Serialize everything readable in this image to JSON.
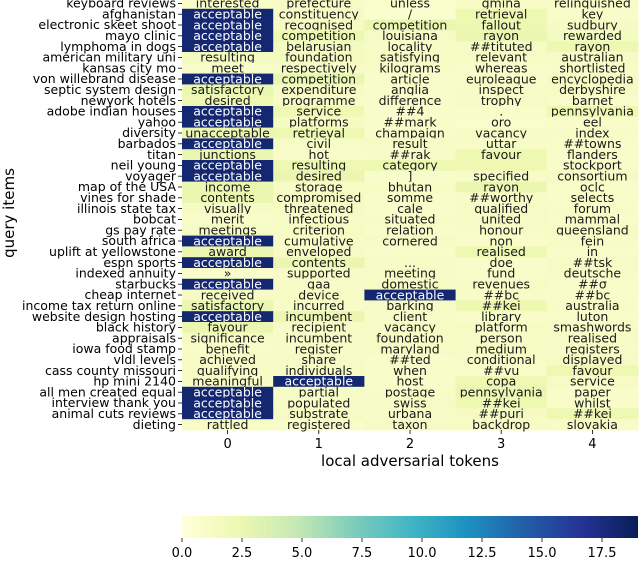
{
  "chart_data": {
    "type": "heatmap",
    "title": "",
    "xlabel": "local adversarial tokens",
    "ylabel": "query items",
    "columns": [
      "0",
      "1",
      "2",
      "3",
      "4"
    ],
    "rows": [
      {
        "query": "keyboard reviews",
        "tokens": [
          "interested",
          "prefecture",
          "unless",
          "gmina",
          "relinquished"
        ],
        "values": [
          1.0,
          1.2,
          0.8,
          1.3,
          1.1
        ]
      },
      {
        "query": "afghanistan",
        "tokens": [
          "acceptable",
          "constituency",
          "/",
          "retrieval",
          "key"
        ],
        "values": [
          18.0,
          1.2,
          0.7,
          2.4,
          1.0
        ]
      },
      {
        "query": "electronic skeet shoot",
        "tokens": [
          "acceptable",
          "recognised",
          "competition",
          "fallout",
          "sudbury"
        ],
        "values": [
          18.0,
          1.3,
          2.6,
          2.3,
          1.2
        ]
      },
      {
        "query": "mayo clinic",
        "tokens": [
          "acceptable",
          "competition",
          "louisiana",
          "rayon",
          "rewarded"
        ],
        "values": [
          18.0,
          2.4,
          1.2,
          2.5,
          1.4
        ]
      },
      {
        "query": "lymphoma in dogs",
        "tokens": [
          "acceptable",
          "belarusian",
          "locality",
          "##tituted",
          "rayon"
        ],
        "values": [
          18.0,
          1.4,
          1.1,
          1.3,
          2.4
        ]
      },
      {
        "query": "american military uni",
        "tokens": [
          "resulting",
          "foundation",
          "satisfying",
          "relevant",
          "australian"
        ],
        "values": [
          1.5,
          1.6,
          1.3,
          1.2,
          1.2
        ]
      },
      {
        "query": "kansas city mo",
        "tokens": [
          "meet",
          "respectively",
          "kilograms",
          "whereas",
          "shortlisted"
        ],
        "values": [
          1.0,
          1.2,
          1.1,
          1.0,
          1.1
        ]
      },
      {
        "query": "von willebrand disease",
        "tokens": [
          "acceptable",
          "competition",
          "article",
          "euroleague",
          "encyclopedia"
        ],
        "values": [
          18.0,
          2.6,
          0.9,
          1.0,
          1.2
        ]
      },
      {
        "query": "septic system design",
        "tokens": [
          "satisfactory",
          "expenditure",
          "anglia",
          "inspect",
          "derbyshire"
        ],
        "values": [
          2.6,
          1.2,
          1.0,
          1.1,
          1.3
        ]
      },
      {
        "query": "newyork hotels",
        "tokens": [
          "desired",
          "programme",
          "difference",
          "trophy",
          "barnet"
        ],
        "values": [
          2.3,
          1.1,
          1.0,
          1.2,
          1.0
        ]
      },
      {
        "query": "adobe indian houses",
        "tokens": [
          "acceptable",
          "service",
          "##4",
          ".",
          "pennsylvania"
        ],
        "values": [
          18.0,
          2.2,
          0.8,
          1.0,
          2.4
        ]
      },
      {
        "query": "yahoo",
        "tokens": [
          "acceptable",
          "platforms",
          "##mark",
          "oro",
          "eel"
        ],
        "values": [
          18.0,
          1.3,
          1.0,
          0.8,
          1.0
        ]
      },
      {
        "query": "diversity",
        "tokens": [
          "unacceptable",
          "retrieval",
          "champaign",
          "vacancy",
          "index"
        ],
        "values": [
          2.5,
          2.4,
          1.0,
          1.2,
          1.1
        ]
      },
      {
        "query": "barbados",
        "tokens": [
          "acceptable",
          "civil",
          "result",
          "uttar",
          "##towns"
        ],
        "values": [
          18.0,
          1.1,
          1.2,
          1.1,
          1.0
        ]
      },
      {
        "query": "titan",
        "tokens": [
          "junctions",
          "hot",
          "##rak",
          "favour",
          "flanders"
        ],
        "values": [
          2.5,
          1.0,
          1.1,
          2.4,
          1.0
        ]
      },
      {
        "query": "neil young",
        "tokens": [
          "acceptable",
          "resulting",
          "category",
          "",
          "stockport"
        ],
        "values": [
          18.0,
          2.3,
          2.4,
          2.3,
          1.0
        ]
      },
      {
        "query": "voyager",
        "tokens": [
          "acceptable",
          "desired",
          "]",
          "specified",
          "consortium"
        ],
        "values": [
          18.0,
          2.5,
          0.9,
          1.1,
          1.2
        ]
      },
      {
        "query": "map of the USA",
        "tokens": [
          "income",
          "storage",
          "bhutan",
          "rayon",
          "oclc"
        ],
        "values": [
          2.5,
          1.1,
          1.1,
          2.5,
          1.0
        ]
      },
      {
        "query": "vines for shade",
        "tokens": [
          "contents",
          "compromised",
          "somme",
          "##worthy",
          "selects"
        ],
        "values": [
          2.5,
          1.3,
          1.0,
          1.1,
          1.0
        ]
      },
      {
        "query": "illinois state tax",
        "tokens": [
          "visually",
          "threatened",
          "cale",
          "qualified",
          "forum"
        ],
        "values": [
          1.2,
          1.3,
          1.0,
          1.2,
          1.1
        ]
      },
      {
        "query": "bobcat",
        "tokens": [
          "merit",
          "infectious",
          "situated",
          "united",
          "mammal"
        ],
        "values": [
          1.0,
          1.1,
          1.1,
          1.2,
          1.0
        ]
      },
      {
        "query": "gs pay rate",
        "tokens": [
          "meetings",
          "criterion",
          "relation",
          "honour",
          "queensland"
        ],
        "values": [
          1.2,
          1.3,
          1.0,
          1.1,
          1.2
        ]
      },
      {
        "query": "south africa",
        "tokens": [
          "acceptable",
          "cumulative",
          "cornered",
          "non",
          "fein"
        ],
        "values": [
          18.0,
          1.1,
          1.2,
          1.0,
          1.1
        ]
      },
      {
        "query": "uplift at yellowstone",
        "tokens": [
          "award",
          "enveloped",
          "",
          "realised",
          "in"
        ],
        "values": [
          2.5,
          1.2,
          1.0,
          2.4,
          1.0
        ]
      },
      {
        "query": "espn sports",
        "tokens": [
          "acceptable",
          "contents",
          "...",
          "doe",
          "##tsk"
        ],
        "values": [
          18.0,
          2.5,
          1.1,
          1.0,
          1.2
        ]
      },
      {
        "query": "indexed annuity",
        "tokens": [
          "»",
          "supported",
          "meeting",
          "fund",
          "deutsche"
        ],
        "values": [
          1.0,
          1.1,
          1.2,
          1.0,
          1.1
        ]
      },
      {
        "query": "starbucks",
        "tokens": [
          "acceptable",
          "gaa",
          "domestic",
          "revenues",
          "##σ"
        ],
        "values": [
          18.0,
          1.1,
          1.3,
          1.2,
          1.0
        ]
      },
      {
        "query": "cheap internet",
        "tokens": [
          "received",
          "device",
          "acceptable",
          "##bc",
          "##bc"
        ],
        "values": [
          1.3,
          1.2,
          18.0,
          1.1,
          1.0
        ]
      },
      {
        "query": "income tax return online",
        "tokens": [
          "satisfactory",
          "incurred",
          "barking",
          "##kei",
          "australia"
        ],
        "values": [
          2.6,
          1.1,
          1.2,
          2.4,
          1.1
        ]
      },
      {
        "query": "website design hosting",
        "tokens": [
          "acceptable",
          "incumbent",
          "client",
          "library",
          "luton"
        ],
        "values": [
          18.0,
          2.5,
          1.1,
          1.0,
          1.0
        ]
      },
      {
        "query": "black history",
        "tokens": [
          "favour",
          "recipient",
          "vacancy",
          "platform",
          "smashwords"
        ],
        "values": [
          2.5,
          1.1,
          1.2,
          1.3,
          1.1
        ]
      },
      {
        "query": "appraisals",
        "tokens": [
          "significance",
          "incumbent",
          "foundation",
          "person",
          "realised"
        ],
        "values": [
          1.2,
          1.1,
          1.3,
          1.1,
          1.2
        ]
      },
      {
        "query": "iowa food stamp",
        "tokens": [
          "benefit",
          "register",
          "maryland",
          "medium",
          "registers"
        ],
        "values": [
          1.0,
          1.1,
          1.2,
          1.3,
          1.1
        ]
      },
      {
        "query": "vldl levels",
        "tokens": [
          "achieved",
          "share",
          "##ted",
          "conditional",
          "displayed"
        ],
        "values": [
          1.1,
          1.2,
          1.0,
          1.1,
          1.2
        ]
      },
      {
        "query": "cass county missouri",
        "tokens": [
          "qualifying",
          "individuals",
          "when",
          "##vu",
          "favour"
        ],
        "values": [
          1.2,
          1.3,
          1.0,
          1.0,
          2.4
        ]
      },
      {
        "query": "hp mini 2140",
        "tokens": [
          "meaningful",
          "acceptable",
          "host",
          "copa",
          "service"
        ],
        "values": [
          1.1,
          18.0,
          1.0,
          2.3,
          1.2
        ]
      },
      {
        "query": "all men created equal",
        "tokens": [
          "acceptable",
          "partial",
          "postage",
          "pennsylvania",
          "paper"
        ],
        "values": [
          18.0,
          1.2,
          1.1,
          2.5,
          1.0
        ]
      },
      {
        "query": "interview thank you",
        "tokens": [
          "acceptable",
          "populated",
          "swiss",
          "##kei",
          "whilst"
        ],
        "values": [
          18.0,
          1.1,
          1.2,
          2.4,
          1.0
        ]
      },
      {
        "query": "animal cuts reviews",
        "tokens": [
          "acceptable",
          "substrate",
          "urbana",
          "##puri",
          "##kei"
        ],
        "values": [
          18.0,
          1.2,
          1.1,
          1.3,
          2.4
        ]
      },
      {
        "query": "dieting",
        "tokens": [
          "rattled",
          "registered",
          "taxon",
          "backdrop",
          "slovakia"
        ],
        "values": [
          1.1,
          1.0,
          1.2,
          1.3,
          1.1
        ]
      }
    ],
    "colorbar": {
      "min": 0,
      "max": 19,
      "ticks": [
        "0.0",
        "2.5",
        "5.0",
        "7.5",
        "10.0",
        "12.5",
        "15.0",
        "17.5"
      ],
      "tick_values": [
        0,
        2.5,
        5,
        7.5,
        10,
        12.5,
        15,
        17.5
      ],
      "colormap": "YlGnBu",
      "stops": [
        "#ffffd9",
        "#edf8b1",
        "#c7e9b4",
        "#7fcdbb",
        "#41b6c4",
        "#1d91c0",
        "#225ea8",
        "#253494",
        "#081d58"
      ]
    },
    "grid": false,
    "legend": "colorbar-bottom"
  }
}
